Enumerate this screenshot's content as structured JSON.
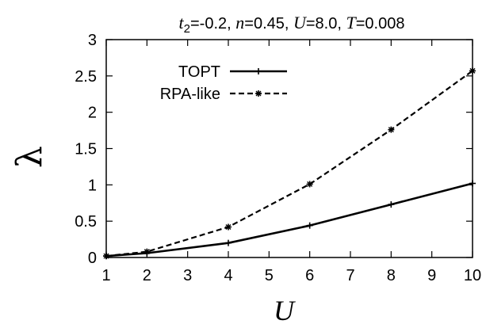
{
  "chart_data": {
    "type": "line",
    "title_parts": {
      "t_sym": "t",
      "t_sub": "2",
      "t_val": "=-0.2, ",
      "n_sym": "n",
      "n_val": "=0.45, ",
      "U_sym": "U",
      "U_val": "=8.0, ",
      "T_sym": "T",
      "T_val": "=0.008"
    },
    "xlabel": "U",
    "ylabel": "λ",
    "xlim": [
      1,
      10
    ],
    "ylim": [
      0,
      3
    ],
    "xticks": [
      1,
      2,
      3,
      4,
      5,
      6,
      7,
      8,
      9,
      10
    ],
    "xtick_labels": [
      "1",
      "2",
      "3",
      "4",
      "5",
      "6",
      "7",
      "8",
      "9",
      "10"
    ],
    "yticks": [
      0,
      0.5,
      1,
      1.5,
      2,
      2.5,
      3
    ],
    "ytick_labels": [
      "0",
      "0.5",
      "1",
      "1.5",
      "2",
      "2.5",
      "3"
    ],
    "grid": false,
    "legend": "top-left",
    "series": [
      {
        "name": "TOPT",
        "style": "solid",
        "marker": "plus",
        "x": [
          1,
          2,
          4,
          6,
          8,
          10
        ],
        "y": [
          0.02,
          0.06,
          0.2,
          0.44,
          0.73,
          1.02
        ]
      },
      {
        "name": "RPA-like",
        "style": "dashed",
        "marker": "star",
        "x": [
          1,
          2,
          4,
          6,
          8,
          10
        ],
        "y": [
          0.02,
          0.08,
          0.42,
          1.01,
          1.76,
          2.57
        ]
      }
    ]
  }
}
